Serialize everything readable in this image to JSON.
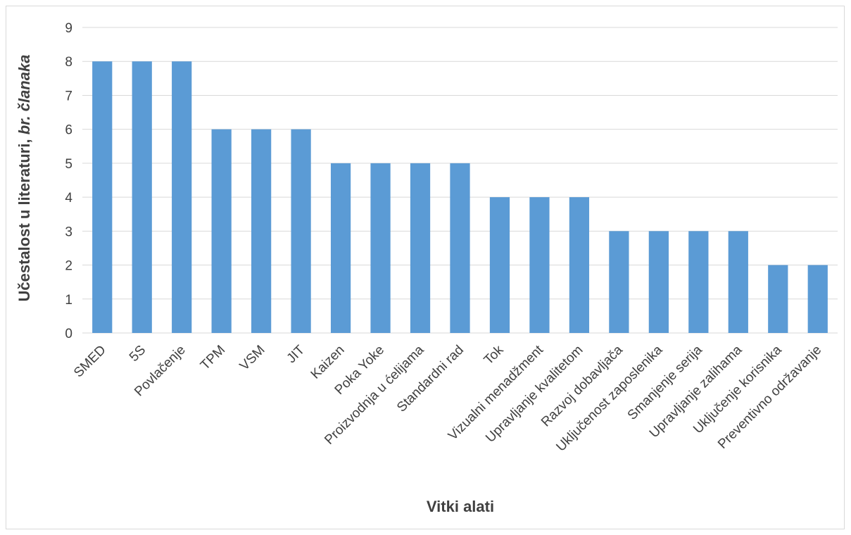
{
  "chart_data": {
    "type": "bar",
    "categories": [
      "SMED",
      "5S",
      "Povlačenje",
      "TPM",
      "VSM",
      "JIT",
      "Kaizen",
      "Poka Yoke",
      "Proizvodnja u ćelijama",
      "Standardni rad",
      "Tok",
      "Vizualni menadžment",
      "Upravljanje kvalitetom",
      "Razvoj dobavljača",
      "Uključenost zaposlenika",
      "Smanjenje serija",
      "Upravljanje zalihama",
      "Uključenje korisnika",
      "Preventivno održavanje"
    ],
    "values": [
      8,
      8,
      8,
      6,
      6,
      6,
      5,
      5,
      5,
      5,
      4,
      4,
      4,
      3,
      3,
      3,
      3,
      2,
      2
    ],
    "xlabel": "Vitki alati",
    "ylabel": "Učestalost u literaturi, ",
    "ylabel_italic": "br. članaka",
    "ylim": [
      0,
      9
    ],
    "yticks": [
      "0",
      "1",
      "2",
      "3",
      "4",
      "5",
      "6",
      "7",
      "8",
      "9"
    ],
    "grid": "horizontal",
    "bar_color": "#5b9bd5",
    "grid_color": "#d9d9d9"
  }
}
